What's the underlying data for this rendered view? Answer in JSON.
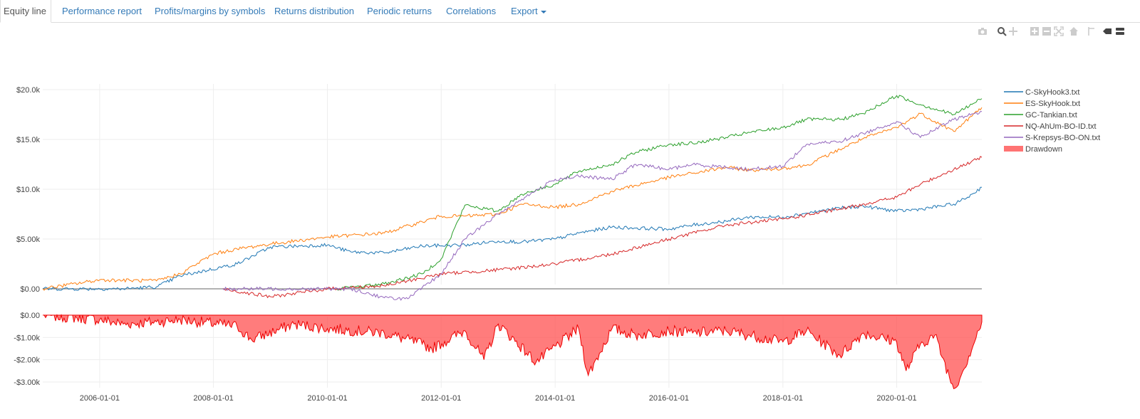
{
  "tabs": [
    {
      "label": "Equity line",
      "active": true
    },
    {
      "label": "Performance report"
    },
    {
      "label": "Profits/margins by symbols"
    },
    {
      "label": "Returns distribution"
    },
    {
      "label": "Periodic returns"
    },
    {
      "label": "Correlations"
    },
    {
      "label": "Export"
    }
  ],
  "modebar": [
    "camera-icon",
    "zoom-icon",
    "pan-icon",
    "zoom-in-icon",
    "zoom-out-icon",
    "autoscale-icon",
    "reset-axes-icon",
    "spike-lines-icon",
    "hover-closest-icon",
    "hover-compare-icon"
  ],
  "chart_data": [
    {
      "type": "line",
      "x_unit": "date",
      "x_range": [
        "2005-01-01",
        "2021-06-30"
      ],
      "x_ticks": [
        "2006-01-01",
        "2008-01-01",
        "2010-01-01",
        "2012-01-01",
        "2014-01-01",
        "2016-01-01",
        "2018-01-01",
        "2020-01-01"
      ],
      "y_ticks": [
        "$0.00",
        "$5.00k",
        "$10.0k",
        "$15.0k",
        "$20.0k"
      ],
      "ylim": [
        -1500,
        21200
      ],
      "grid": true,
      "legend_position": "right",
      "series": [
        {
          "name": "C-SkyHook3.txt",
          "color": "#1f77b4",
          "points": [
            [
              "2005-01-01",
              0
            ],
            [
              "2006-06-01",
              0
            ],
            [
              "2007-01-01",
              200
            ],
            [
              "2007-06-01",
              1300
            ],
            [
              "2008-06-01",
              2500
            ],
            [
              "2009-01-01",
              4200
            ],
            [
              "2010-01-01",
              4400
            ],
            [
              "2010-06-01",
              3700
            ],
            [
              "2011-01-01",
              3600
            ],
            [
              "2011-09-01",
              4300
            ],
            [
              "2012-06-01",
              4400
            ],
            [
              "2013-01-01",
              4800
            ],
            [
              "2013-06-01",
              4700
            ],
            [
              "2014-01-01",
              5000
            ],
            [
              "2014-06-01",
              5600
            ],
            [
              "2015-01-01",
              6200
            ],
            [
              "2015-06-01",
              6100
            ],
            [
              "2016-01-01",
              6000
            ],
            [
              "2016-06-01",
              6400
            ],
            [
              "2017-01-01",
              6800
            ],
            [
              "2017-06-01",
              7200
            ],
            [
              "2018-01-01",
              7200
            ],
            [
              "2018-06-01",
              7600
            ],
            [
              "2019-01-01",
              8100
            ],
            [
              "2019-06-01",
              8300
            ],
            [
              "2020-01-01",
              7800
            ],
            [
              "2020-06-01",
              8000
            ],
            [
              "2021-01-01",
              8500
            ],
            [
              "2021-04-01",
              9200
            ],
            [
              "2021-06-30",
              10200
            ]
          ]
        },
        {
          "name": "ES-SkyHook.txt",
          "color": "#ff7f0e",
          "points": [
            [
              "2005-01-01",
              0
            ],
            [
              "2006-01-01",
              900
            ],
            [
              "2007-01-01",
              800
            ],
            [
              "2007-06-01",
              1500
            ],
            [
              "2008-01-01",
              3500
            ],
            [
              "2008-06-01",
              4000
            ],
            [
              "2009-01-01",
              4500
            ],
            [
              "2010-01-01",
              5200
            ],
            [
              "2011-01-01",
              5600
            ],
            [
              "2012-01-01",
              7300
            ],
            [
              "2012-06-01",
              7300
            ],
            [
              "2013-01-01",
              7500
            ],
            [
              "2013-06-01",
              8500
            ],
            [
              "2014-01-01",
              8200
            ],
            [
              "2014-06-01",
              8500
            ],
            [
              "2015-01-01",
              9800
            ],
            [
              "2015-06-01",
              10400
            ],
            [
              "2016-01-01",
              11200
            ],
            [
              "2016-06-01",
              11600
            ],
            [
              "2017-01-01",
              12200
            ],
            [
              "2017-06-01",
              11900
            ],
            [
              "2018-01-01",
              12100
            ],
            [
              "2018-06-01",
              12400
            ],
            [
              "2019-01-01",
              14000
            ],
            [
              "2019-06-01",
              15100
            ],
            [
              "2020-01-01",
              16200
            ],
            [
              "2020-06-01",
              17600
            ],
            [
              "2021-01-01",
              15800
            ],
            [
              "2021-06-30",
              18200
            ]
          ]
        },
        {
          "name": "GC-Tankian.txt",
          "color": "#2ca02c",
          "points": [
            [
              "2010-03-01",
              0
            ],
            [
              "2011-01-01",
              500
            ],
            [
              "2011-09-01",
              1500
            ],
            [
              "2012-01-01",
              3000
            ],
            [
              "2012-06-01",
              8400
            ],
            [
              "2013-01-01",
              7800
            ],
            [
              "2013-06-01",
              9500
            ],
            [
              "2014-01-01",
              10500
            ],
            [
              "2014-06-01",
              11800
            ],
            [
              "2015-01-01",
              12500
            ],
            [
              "2015-06-01",
              13700
            ],
            [
              "2016-01-01",
              14500
            ],
            [
              "2016-06-01",
              14600
            ],
            [
              "2017-01-01",
              15200
            ],
            [
              "2017-06-01",
              15700
            ],
            [
              "2018-01-01",
              16200
            ],
            [
              "2018-06-01",
              17000
            ],
            [
              "2019-01-01",
              17000
            ],
            [
              "2019-06-01",
              17600
            ],
            [
              "2020-01-01",
              19400
            ],
            [
              "2020-06-01",
              18500
            ],
            [
              "2021-01-01",
              17500
            ],
            [
              "2021-06-30",
              19100
            ]
          ]
        },
        {
          "name": "NQ-AhUm-BO-ID.txt",
          "color": "#d62728",
          "points": [
            [
              "2008-03-01",
              0
            ],
            [
              "2009-01-01",
              -800
            ],
            [
              "2010-01-01",
              0
            ],
            [
              "2011-01-01",
              300
            ],
            [
              "2012-01-01",
              1500
            ],
            [
              "2013-01-01",
              1900
            ],
            [
              "2014-01-01",
              2500
            ],
            [
              "2015-01-01",
              3500
            ],
            [
              "2016-01-01",
              5000
            ],
            [
              "2017-01-01",
              6400
            ],
            [
              "2018-01-01",
              7000
            ],
            [
              "2019-01-01",
              8000
            ],
            [
              "2020-01-01",
              9200
            ],
            [
              "2020-06-01",
              10500
            ],
            [
              "2021-01-01",
              12000
            ],
            [
              "2021-06-30",
              13200
            ]
          ]
        },
        {
          "name": "S-Krepsys-BO-ON.txt",
          "color": "#9467bd",
          "points": [
            [
              "2008-03-01",
              0
            ],
            [
              "2010-06-01",
              0
            ],
            [
              "2011-01-01",
              -900
            ],
            [
              "2011-06-01",
              -1000
            ],
            [
              "2012-01-01",
              1500
            ],
            [
              "2012-06-01",
              5000
            ],
            [
              "2013-01-01",
              7500
            ],
            [
              "2013-06-01",
              9000
            ],
            [
              "2014-01-01",
              11000
            ],
            [
              "2014-06-01",
              11300
            ],
            [
              "2015-01-01",
              11000
            ],
            [
              "2015-06-01",
              12500
            ],
            [
              "2016-01-01",
              12000
            ],
            [
              "2016-06-01",
              12500
            ],
            [
              "2017-01-01",
              12200
            ],
            [
              "2017-06-01",
              12000
            ],
            [
              "2018-01-01",
              12300
            ],
            [
              "2018-06-01",
              14500
            ],
            [
              "2019-01-01",
              14800
            ],
            [
              "2019-06-01",
              15600
            ],
            [
              "2020-01-01",
              16800
            ],
            [
              "2020-06-01",
              15200
            ],
            [
              "2021-01-01",
              17000
            ],
            [
              "2021-06-30",
              17800
            ]
          ]
        }
      ]
    },
    {
      "type": "area",
      "x_unit": "date",
      "x_range": [
        "2005-01-01",
        "2021-06-30"
      ],
      "y_ticks": [
        "$0.00",
        "-$1.00k",
        "-$2.00k",
        "-$3.00k"
      ],
      "ylim": [
        -3400,
        0
      ],
      "series": [
        {
          "name": "Drawdown",
          "color": "#ff5050",
          "points": [
            [
              "2005-01-01",
              0
            ],
            [
              "2006-01-01",
              -200
            ],
            [
              "2006-06-01",
              -400
            ],
            [
              "2007-01-01",
              -300
            ],
            [
              "2007-06-01",
              -200
            ],
            [
              "2008-06-01",
              -500
            ],
            [
              "2008-09-01",
              -1100
            ],
            [
              "2009-06-01",
              -400
            ],
            [
              "2010-01-01",
              -600
            ],
            [
              "2011-01-01",
              -800
            ],
            [
              "2011-09-01",
              -1300
            ],
            [
              "2011-11-01",
              -1500
            ],
            [
              "2012-06-01",
              -700
            ],
            [
              "2012-10-01",
              -2000
            ],
            [
              "2013-01-01",
              -400
            ],
            [
              "2013-09-01",
              -2100
            ],
            [
              "2014-06-01",
              -600
            ],
            [
              "2014-08-01",
              -2700
            ],
            [
              "2015-01-01",
              -600
            ],
            [
              "2015-06-01",
              -900
            ],
            [
              "2016-01-01",
              -700
            ],
            [
              "2016-06-01",
              -800
            ],
            [
              "2017-01-01",
              -700
            ],
            [
              "2017-06-01",
              -900
            ],
            [
              "2018-01-01",
              -1200
            ],
            [
              "2018-06-01",
              -700
            ],
            [
              "2019-01-01",
              -1800
            ],
            [
              "2019-06-01",
              -800
            ],
            [
              "2020-01-01",
              -1200
            ],
            [
              "2020-03-01",
              -2500
            ],
            [
              "2020-06-01",
              -1300
            ],
            [
              "2020-09-01",
              -900
            ],
            [
              "2021-01-01",
              -3300
            ],
            [
              "2021-03-01",
              -2500
            ],
            [
              "2021-06-30",
              -300
            ]
          ]
        }
      ]
    }
  ]
}
